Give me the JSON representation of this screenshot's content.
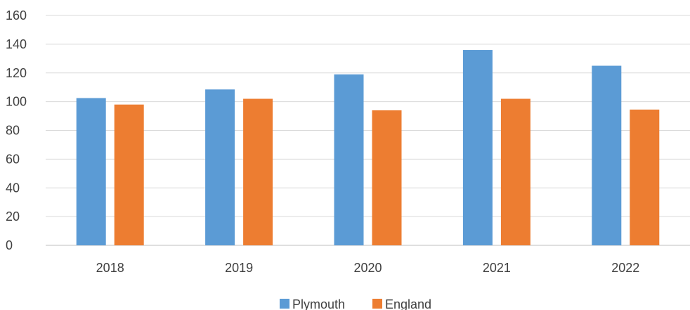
{
  "chart_data": {
    "type": "bar",
    "title": "",
    "xlabel": "",
    "ylabel": "",
    "categories": [
      "2018",
      "2019",
      "2020",
      "2021",
      "2022"
    ],
    "series": [
      {
        "name": "Plymouth",
        "color": "#5b9bd5",
        "values": [
          102.5,
          108.5,
          119,
          136,
          125
        ]
      },
      {
        "name": "England",
        "color": "#ed7d31",
        "values": [
          98,
          102,
          94,
          102,
          94.5
        ]
      }
    ],
    "ylim": [
      0,
      160
    ],
    "yticks": [
      "0",
      "20",
      "40",
      "60",
      "80",
      "100",
      "120",
      "140",
      "160"
    ],
    "grid": true,
    "legend": "bottom-center"
  }
}
